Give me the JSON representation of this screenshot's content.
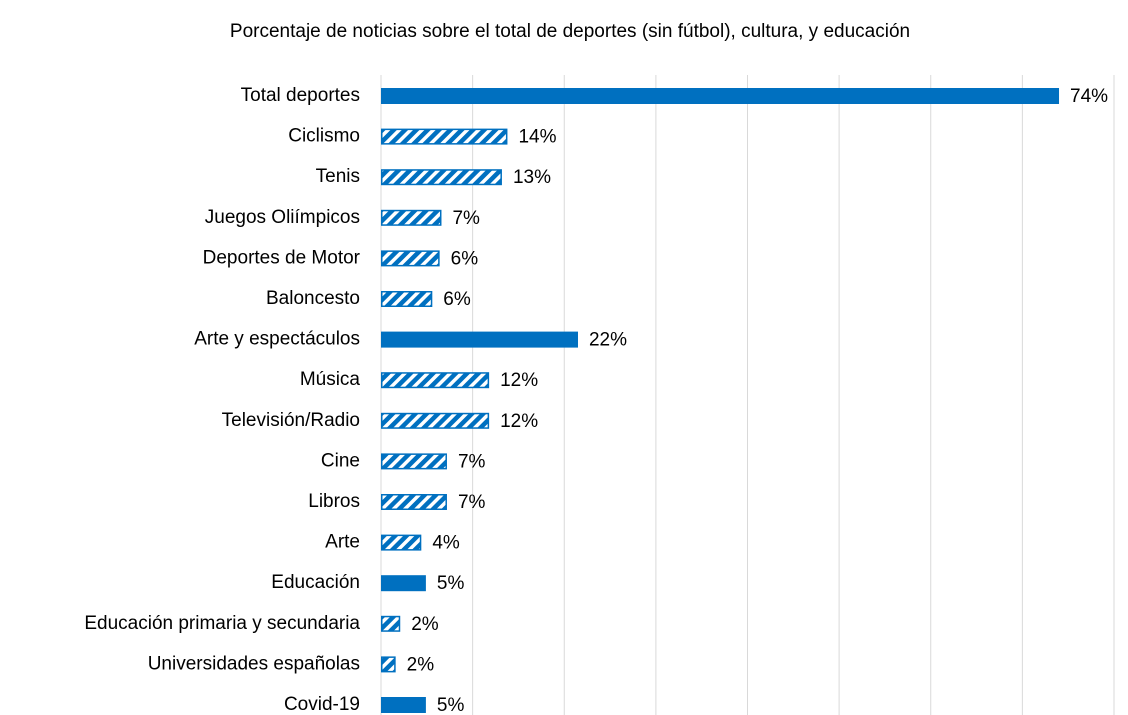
{
  "chart_data": {
    "type": "barh",
    "title": "Porcentaje de noticias sobre el total de deportes (sin fútbol), cultura, y educación",
    "categories": [
      "Total deportes",
      "Ciclismo",
      "Tenis",
      "Juegos Oliímpicos",
      "Deportes de Motor",
      "Baloncesto",
      "Arte y espectáculos",
      "Música",
      "Televisión/Radio",
      "Cine",
      "Libros",
      "Arte",
      "Educación",
      "Educación primaria y secundaria",
      "Universidades españolas",
      "Covid-19"
    ],
    "values": [
      74,
      13.8,
      13.2,
      6.6,
      6.4,
      5.6,
      21.5,
      11.8,
      11.8,
      7.2,
      7.2,
      4.4,
      4.9,
      2.1,
      1.6,
      4.9
    ],
    "value_labels": [
      "74%",
      "14%",
      "13%",
      "7%",
      "6%",
      "6%",
      "22%",
      "12%",
      "12%",
      "7%",
      "7%",
      "4%",
      "5%",
      "2%",
      "2%",
      "5%"
    ],
    "hatched": [
      false,
      true,
      true,
      true,
      true,
      true,
      false,
      true,
      true,
      true,
      true,
      true,
      false,
      true,
      true,
      false
    ],
    "color": "#0070c0",
    "xlim": [
      0,
      80
    ],
    "xticks": [
      0,
      10,
      20,
      30,
      40,
      50,
      60,
      70,
      80
    ],
    "grid": true
  }
}
